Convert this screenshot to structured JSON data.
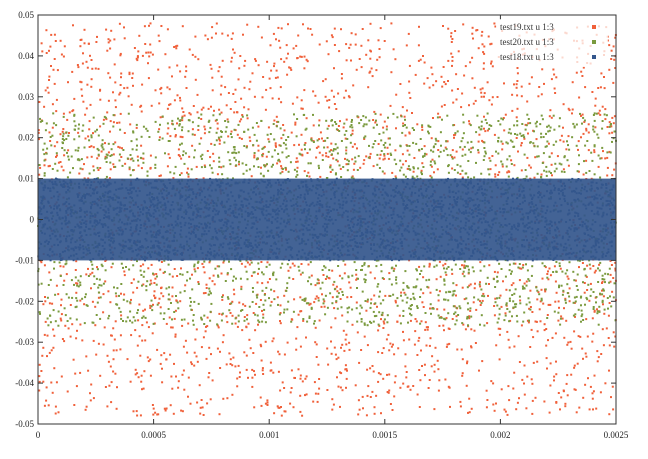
{
  "chart_data": {
    "type": "scatter",
    "title": "",
    "xlabel": "",
    "ylabel": "",
    "xlim": [
      0,
      0.0025
    ],
    "ylim": [
      -0.05,
      0.05
    ],
    "x_ticks": [
      "0",
      "0.0005",
      "0.001",
      "0.0015",
      "0.002",
      "0.0025"
    ],
    "y_ticks": [
      "0.05",
      "0.04",
      "0.03",
      "0.02",
      "0.01",
      "0",
      "-0.01",
      "-0.02",
      "-0.03",
      "-0.04",
      "-0.05"
    ],
    "grid": false,
    "legend_position": "top-right",
    "series": [
      {
        "name": "test19.txt u 1:3",
        "color": "#f0603a",
        "amplitude": 0.048,
        "points": 2600
      },
      {
        "name": "test20.txt u 1:3",
        "color": "#7a9a3e",
        "amplitude": 0.026,
        "points": 2200
      },
      {
        "name": "test18.txt u 1:3",
        "color": "#33568c",
        "amplitude": 0.01,
        "points": 2600
      }
    ]
  }
}
